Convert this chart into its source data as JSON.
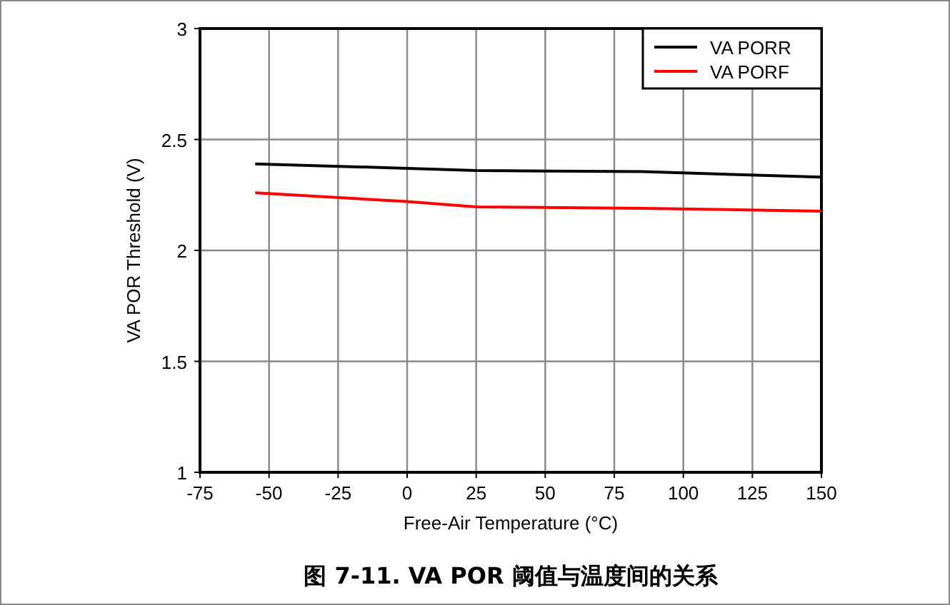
{
  "chart_data": {
    "type": "line",
    "title": "图 7-11. VA POR 阈值与温度间的关系",
    "xlabel": "Free-Air Temperature (°C)",
    "ylabel": "VA POR Threshold (V)",
    "xlim": [
      -75,
      150
    ],
    "xticks": [
      -75,
      -50,
      -25,
      0,
      25,
      50,
      75,
      100,
      125,
      150
    ],
    "ylim": [
      1,
      3
    ],
    "yticks": [
      1,
      1.5,
      2,
      2.5,
      3
    ],
    "grid": true,
    "legend": "top right",
    "series": [
      {
        "name": "VA PORR",
        "color": "#000000",
        "x": [
          -55,
          0,
          25,
          85,
          150
        ],
        "values": [
          2.39,
          2.37,
          2.36,
          2.355,
          2.33
        ]
      },
      {
        "name": "VA PORF",
        "color": "#ff0000",
        "x": [
          -55,
          0,
          25,
          85,
          150
        ],
        "values": [
          2.26,
          2.22,
          2.196,
          2.19,
          2.177
        ]
      }
    ]
  }
}
